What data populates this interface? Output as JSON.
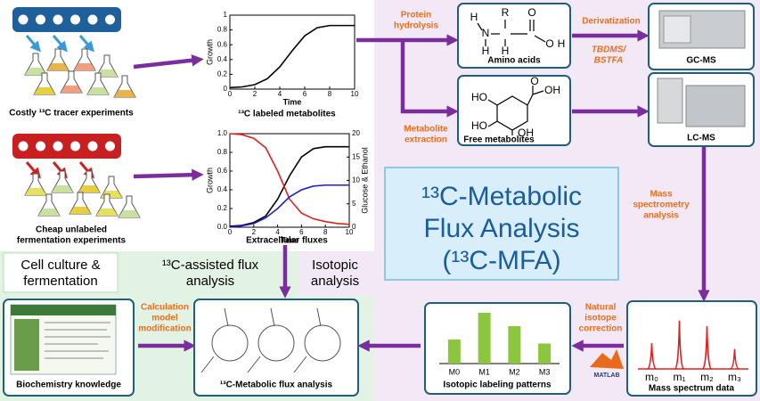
{
  "title": [
    "¹³C-Metabolic",
    "Flux Analysis",
    "(¹³C-MFA)"
  ],
  "labels": {
    "costly": "Costly ¹³C tracer experiments",
    "cheap": [
      "Cheap unlabeled",
      "fermentation experiments"
    ],
    "labeled_metabolites": "¹³C labeled metabolites",
    "extracellular": "Extracellular fluxes",
    "protein_hydrolysis": [
      "Protein",
      "hydrolysis"
    ],
    "metabolite_extraction": [
      "Metabolite",
      "extraction"
    ],
    "derivatization": "Derivatization",
    "tbdms": [
      "TBDMS/",
      "BSTFA"
    ],
    "amino_acids": "Amino acids",
    "free_metabolites": "Free metabolites",
    "gcms": "GC-MS",
    "lcms": "LC-MS",
    "ms_analysis": [
      "Mass",
      "spectrometry",
      "analysis"
    ],
    "natural_correction": [
      "Natural",
      "isotope",
      "correction"
    ],
    "mass_spectrum": "Mass spectrum data",
    "isotopic_patterns": "Isotopic labeling patterns",
    "flux_analysis": "¹³C-Metabolic flux analysis",
    "calc_model": [
      "Calculation",
      "model",
      "modification"
    ],
    "biochem": "Biochemistry knowledge",
    "cell_culture": [
      "Cell culture &",
      "fermentation"
    ],
    "assisted": [
      "¹³C-assisted flux",
      "analysis"
    ],
    "isotopic_analysis": [
      "Isotopic",
      "analysis"
    ],
    "matlab": "MATLAB"
  },
  "amino_acid_atoms": [
    "H",
    "N",
    "H",
    "R",
    "H",
    "O",
    "O",
    "H"
  ],
  "free_metabolite_atoms": [
    "O",
    "OH",
    "HO",
    "HO",
    "OH"
  ],
  "charts": [
    {
      "type": "line",
      "xlabel": "Time",
      "ylabel": "Growth",
      "xlim": [
        0,
        10
      ],
      "ylim": [
        0,
        1
      ],
      "xticks": [
        0,
        2,
        4,
        6,
        8,
        10
      ],
      "yticks": [
        0,
        0.2,
        0.4,
        0.6,
        0.8,
        1
      ],
      "series": [
        {
          "color": "#000000",
          "x": [
            0,
            1,
            2,
            3,
            4,
            5,
            6,
            7,
            8,
            9,
            10
          ],
          "values": [
            0.02,
            0.03,
            0.06,
            0.14,
            0.3,
            0.52,
            0.72,
            0.83,
            0.86,
            0.86,
            0.86
          ]
        }
      ]
    },
    {
      "type": "line",
      "xlabel": "Time",
      "ylabel": "Growth",
      "y2label": "Glucose & Ethanol",
      "xlim": [
        0,
        10
      ],
      "ylim": [
        0,
        1
      ],
      "y2lim": [
        0,
        20
      ],
      "xticks": [
        0,
        2,
        4,
        6,
        8,
        10
      ],
      "yticks": [
        {
          "value": 0,
          "label": "0.0"
        },
        0.2,
        0.4,
        0.6,
        0.8,
        {
          "value": 1,
          "label": "1.0"
        }
      ],
      "y2ticks": [
        0,
        5,
        10,
        15,
        20
      ],
      "series": [
        {
          "color": "#000000",
          "x": [
            0,
            1,
            2,
            3,
            4,
            5,
            6,
            7,
            8,
            9,
            10
          ],
          "values": [
            0.01,
            0.02,
            0.05,
            0.12,
            0.3,
            0.55,
            0.75,
            0.84,
            0.86,
            0.86,
            0.86
          ]
        },
        {
          "color": "#e02020",
          "axis": "y2",
          "x": [
            0,
            1,
            2,
            3,
            4,
            5,
            6,
            7,
            8,
            9,
            10
          ],
          "values": [
            20,
            19.8,
            19,
            17,
            12,
            6,
            3,
            1.8,
            1.2,
            0.8,
            0.6
          ]
        },
        {
          "color": "#2020c0",
          "axis": "y2",
          "x": [
            0,
            1,
            2,
            3,
            4,
            5,
            6,
            7,
            8,
            9,
            10
          ],
          "values": [
            0,
            0.3,
            0.8,
            2,
            4,
            6.5,
            8,
            8.8,
            9,
            9,
            9
          ]
        }
      ]
    }
  ],
  "isotopic": {
    "type": "bar",
    "categories": [
      "M0",
      "M1",
      "M2",
      "M3"
    ],
    "values": [
      0.18,
      0.38,
      0.28,
      0.15
    ],
    "ylim": [
      0,
      0.4
    ],
    "color": "#8cc63f"
  },
  "mass_peaks": {
    "type": "bar",
    "categories": [
      "m₀",
      "m₁",
      "m₂",
      "m₃"
    ],
    "values": [
      0.45,
      0.85,
      0.75,
      0.35
    ],
    "ylim": [
      0,
      1
    ],
    "color": "#e02020"
  }
}
